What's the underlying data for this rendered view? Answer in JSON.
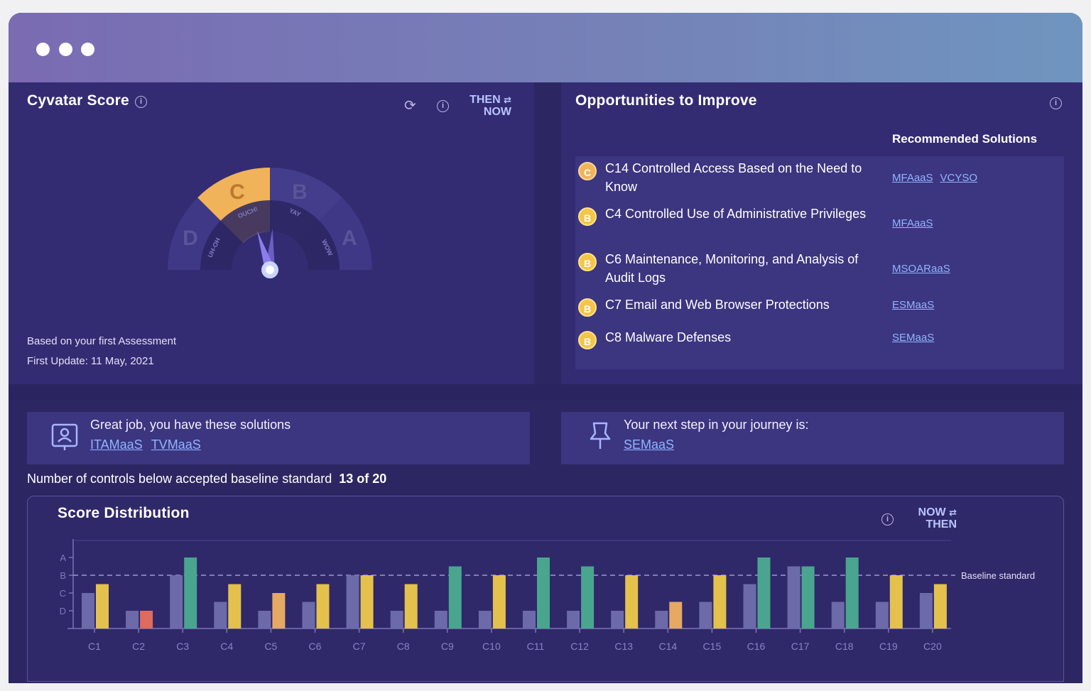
{
  "window": {
    "dots": 3
  },
  "cyvatar_score": {
    "title": "Cyvatar Score",
    "info_symbol": "i",
    "refresh_symbol": "⟳",
    "toggle_top": "THEN",
    "toggle_bottom": "NOW",
    "toggle_symbol": "⇄",
    "gauge": {
      "grades": [
        "D",
        "C",
        "B",
        "A"
      ],
      "labels": [
        "UH-OH",
        "OUCH!",
        "YAY",
        "WOW"
      ],
      "current_grade": "C",
      "needle_then_pct": 0.4,
      "needle_now_pct": 0.52
    },
    "assessment_note": "Based on your first Assessment",
    "first_update": "First Update: 11 May, 2021"
  },
  "opportunities": {
    "title": "Opportunities to Improve",
    "recommended_header": "Recommended Solutions",
    "items": [
      {
        "grade": "C",
        "text": "C14 Controlled Access Based on the Need to Know",
        "links": [
          "MFAaaS",
          "VCYSO"
        ]
      },
      {
        "grade": "B",
        "text": "C4 Controlled Use of Administrative Privileges",
        "links": [
          "MFAaaS"
        ]
      },
      {
        "grade": "B",
        "text": "C6 Maintenance, Monitoring, and Analysis of Audit Logs",
        "links": [
          "MSOARaaS"
        ]
      },
      {
        "grade": "B",
        "text": "C7 Email and Web Browser Protections",
        "links": [
          "ESMaaS"
        ]
      },
      {
        "grade": "B",
        "text": "C8 Malware Defenses",
        "links": [
          "SEMaaS"
        ]
      }
    ]
  },
  "solutions_banner": {
    "text": "Great job, you have these solutions",
    "links": [
      "ITAMaaS",
      "TVMaaS"
    ]
  },
  "next_step_banner": {
    "text": "Your next step in your journey is:",
    "links": [
      "SEMaaS"
    ]
  },
  "controls_summary": {
    "label": "Number of controls below accepted baseline standard",
    "value": "13 of 20"
  },
  "score_distribution": {
    "title": "Score Distribution",
    "toggle_top": "NOW",
    "toggle_bottom": "THEN",
    "toggle_symbol": "⇄",
    "baseline_label": "Baseline standard"
  },
  "colors": {
    "then_bar": "#6c6aa8",
    "now_yellow": "#e3c14c",
    "now_green": "#4aa58f",
    "now_orange": "#e6a964",
    "now_red": "#de6b5e",
    "grade_c": "#f1b35a"
  },
  "chart_data": {
    "type": "bar",
    "y_ticks": [
      "A",
      "B",
      "C",
      "D"
    ],
    "ylim": [
      0,
      5
    ],
    "baseline": 3,
    "categories": [
      "C1",
      "C2",
      "C3",
      "C4",
      "C5",
      "C6",
      "C7",
      "C8",
      "C9",
      "C10",
      "C11",
      "C12",
      "C13",
      "C14",
      "C15",
      "C16",
      "C17",
      "C18",
      "C19",
      "C20"
    ],
    "series": [
      {
        "values": [
          2,
          1,
          3,
          1.5,
          1,
          1.5,
          3,
          1,
          1,
          1,
          1,
          1,
          1,
          1,
          1.5,
          2.5,
          3.5,
          1.5,
          1.5,
          2
        ]
      },
      {
        "values": [
          2.5,
          1,
          4,
          2.5,
          2,
          2.5,
          3,
          2.5,
          3.5,
          3,
          4,
          3.5,
          3,
          1.5,
          3,
          4,
          3.5,
          4,
          3,
          2.5
        ],
        "colors": [
          "yellow",
          "red",
          "green",
          "yellow",
          "orange",
          "yellow",
          "yellow",
          "yellow",
          "green",
          "yellow",
          "green",
          "green",
          "yellow",
          "orange",
          "yellow",
          "green",
          "green",
          "green",
          "yellow",
          "yellow"
        ]
      }
    ]
  }
}
